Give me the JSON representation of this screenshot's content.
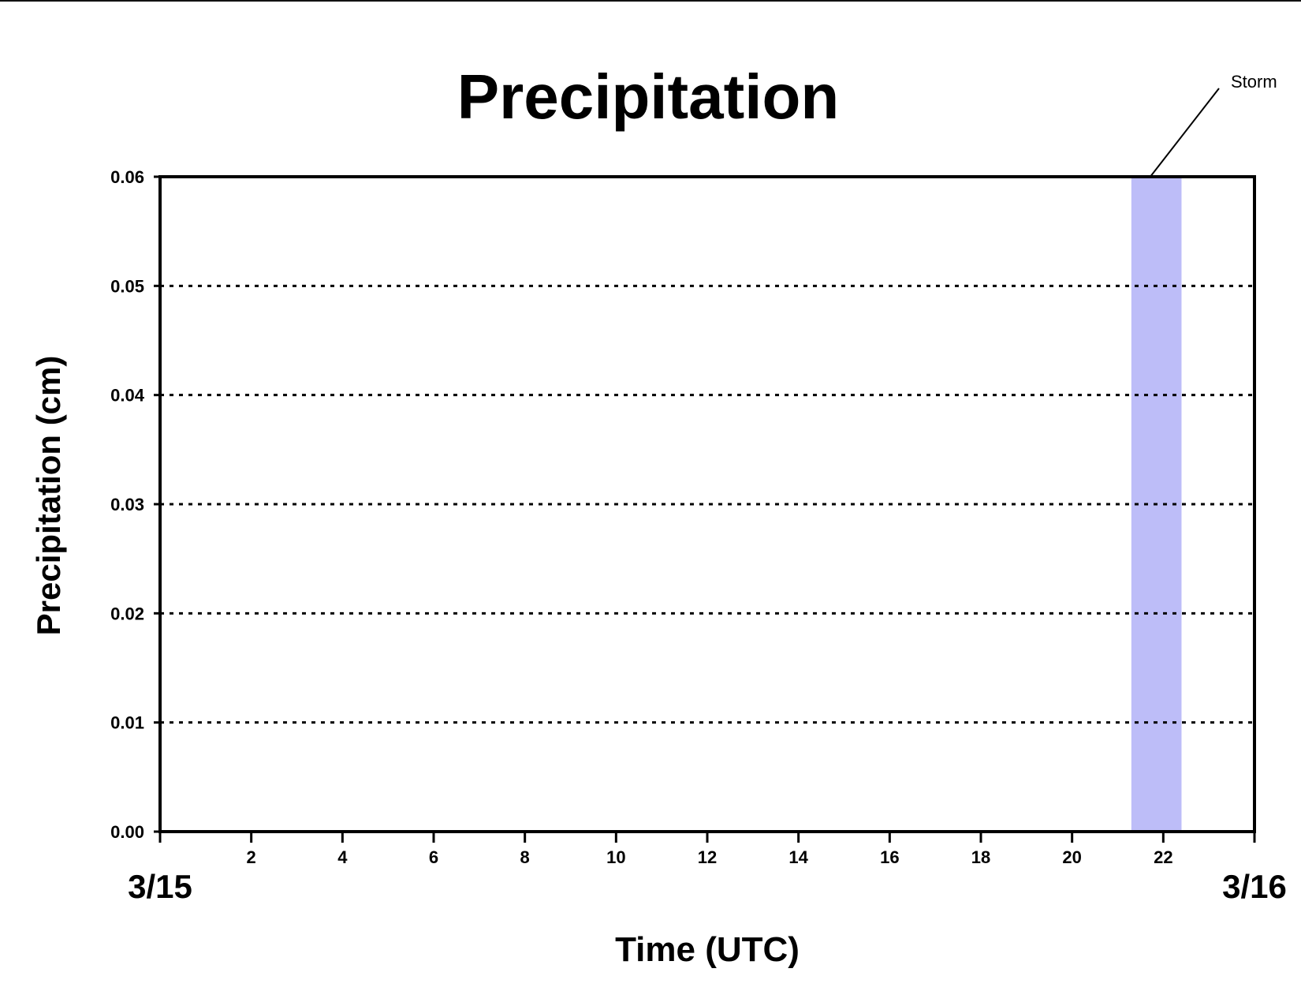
{
  "chart_data": {
    "type": "line",
    "title": "Precipitation",
    "xlabel": "Time (UTC)",
    "ylabel": "Precipitation (cm)",
    "xlim": [
      0,
      24
    ],
    "ylim": [
      0,
      0.06
    ],
    "x_ticks": [
      0,
      2,
      4,
      6,
      8,
      10,
      12,
      14,
      16,
      18,
      20,
      22,
      24
    ],
    "x_tick_labels": [
      "",
      "2",
      "4",
      "6",
      "8",
      "10",
      "12",
      "14",
      "16",
      "18",
      "20",
      "22",
      ""
    ],
    "y_ticks": [
      0,
      0.01,
      0.02,
      0.03,
      0.04,
      0.05,
      0.06
    ],
    "y_tick_labels": [
      "0.00",
      "0.01",
      "0.02",
      "0.03",
      "0.04",
      "0.05",
      "0.06"
    ],
    "date_labels": [
      {
        "x": 0,
        "label": "3/15"
      },
      {
        "x": 24,
        "label": "3/16"
      }
    ],
    "grid": "horizontal-dotted",
    "series": [
      {
        "x": [
          0,
          24
        ],
        "y": [
          0,
          0
        ],
        "color": "#8b0000"
      }
    ],
    "highlight_band": {
      "x_start": 21.3,
      "x_end": 22.4,
      "color": "#bdbdf8",
      "annotation": "Storm"
    }
  }
}
